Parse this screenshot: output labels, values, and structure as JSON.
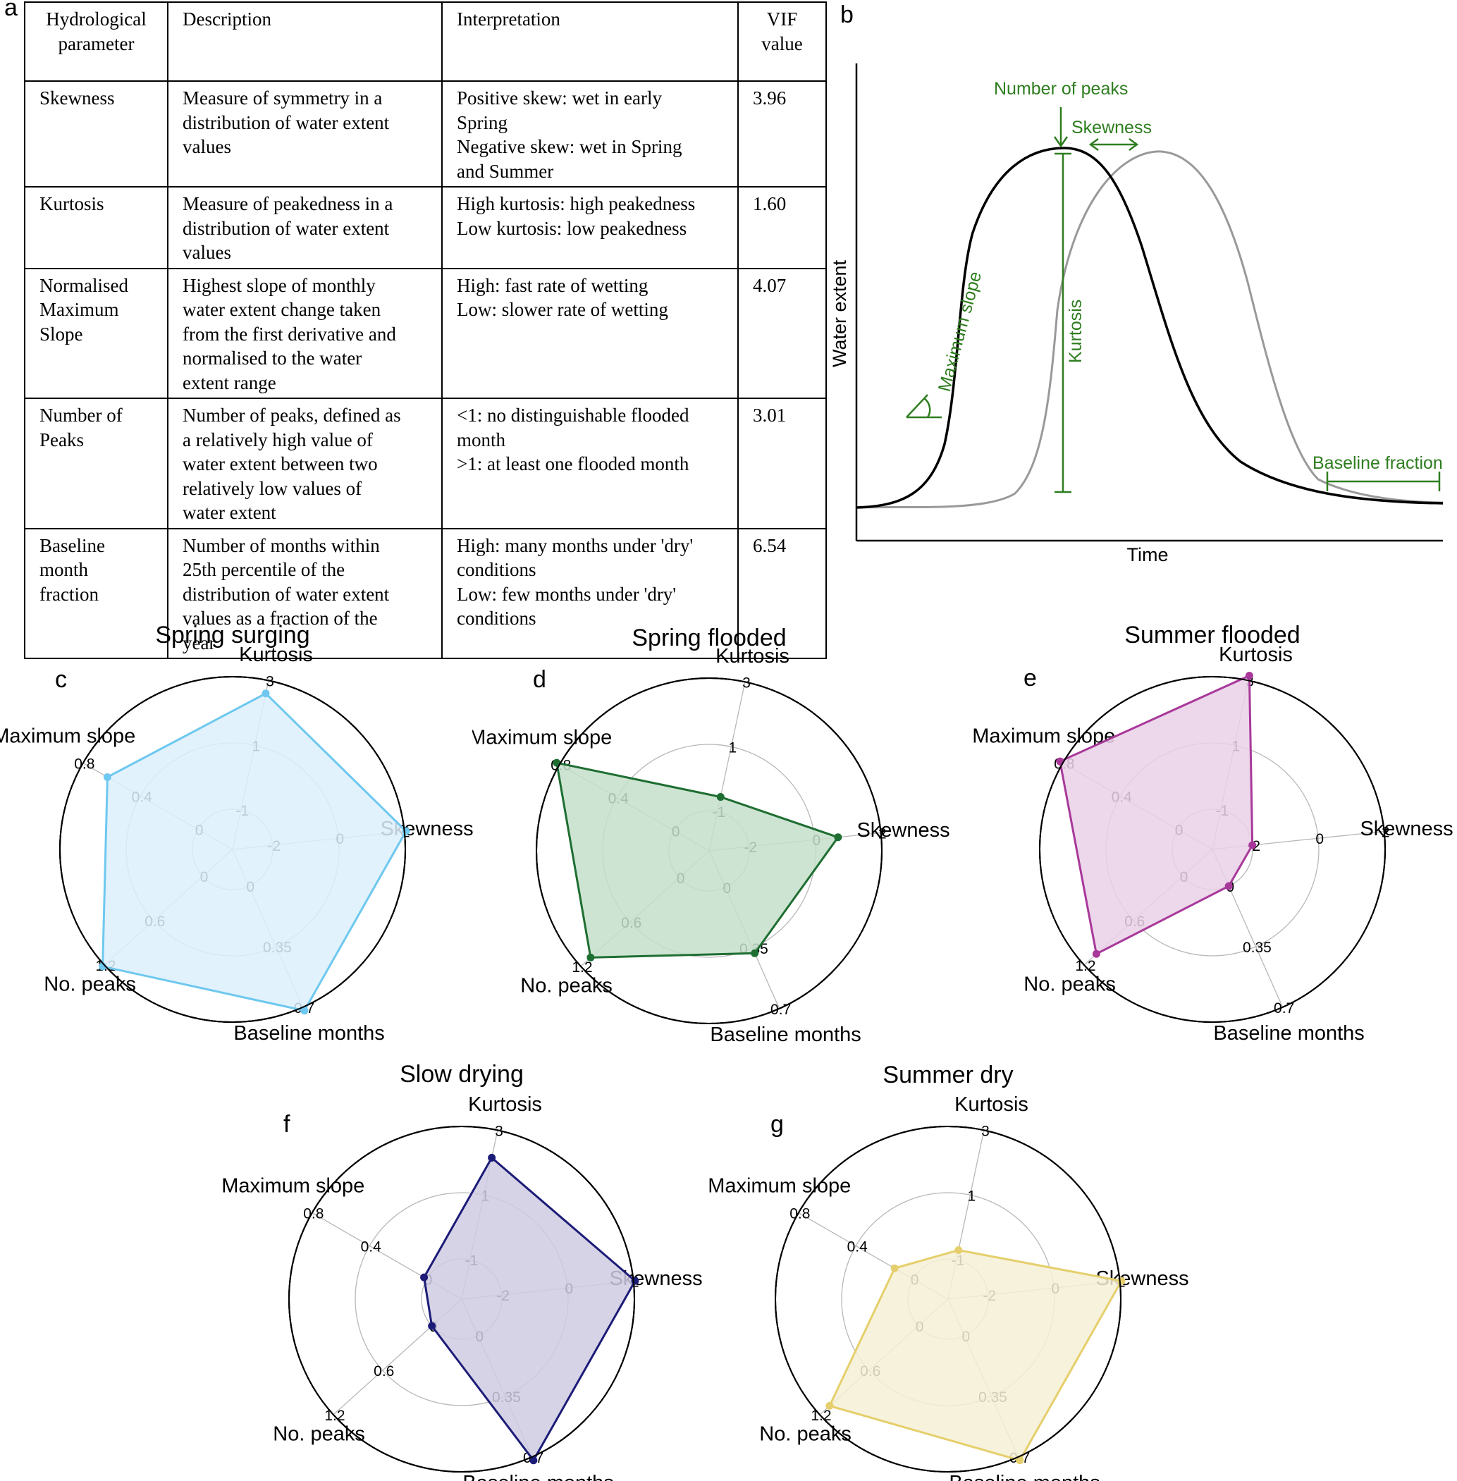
{
  "panel_labels": {
    "a": "a",
    "b": "b",
    "c": "c",
    "d": "d",
    "e": "e",
    "f": "f",
    "g": "g"
  },
  "table": {
    "headers": [
      [
        "Hydrological",
        "parameter"
      ],
      [
        "Description"
      ],
      [
        "Interpretation"
      ],
      [
        "VIF",
        "value"
      ]
    ],
    "rows": [
      {
        "parameter": [
          "Skewness"
        ],
        "description": [
          "Measure of symmetry in a",
          "distribution of water extent",
          "values"
        ],
        "interpretation": [
          "Positive skew: wet in early",
          "Spring",
          "Negative skew: wet in Spring",
          "and Summer"
        ],
        "vif": "3.96"
      },
      {
        "parameter": [
          "Kurtosis"
        ],
        "description": [
          "Measure of peakedness in a",
          "distribution of water extent",
          "values"
        ],
        "interpretation": [
          "High kurtosis: high peakedness",
          "Low kurtosis: low peakedness"
        ],
        "vif": "1.60"
      },
      {
        "parameter": [
          "Normalised",
          "Maximum",
          "Slope"
        ],
        "description": [
          "Highest slope of monthly",
          "water extent change taken",
          "from the first derivative and",
          "normalised to the water",
          "extent range"
        ],
        "interpretation": [
          "High: fast rate of wetting",
          "Low: slower rate of wetting"
        ],
        "vif": "4.07"
      },
      {
        "parameter": [
          "Number of",
          "Peaks"
        ],
        "description": [
          "Number of peaks, defined as",
          "a relatively high value of",
          "water extent between two",
          "relatively low values of",
          "water extent"
        ],
        "interpretation": [
          "<1: no distinguishable flooded",
          "month",
          ">1: at least one flooded month"
        ],
        "vif": "3.01"
      },
      {
        "parameter": [
          "Baseline",
          "month",
          "fraction"
        ],
        "description": [
          "Number of months within",
          "25th percentile of the",
          "distribution of water extent",
          "values as a fraction of the",
          "year"
        ],
        "interpretation": [
          "High: many months under 'dry'",
          "conditions",
          "Low:  few months   under 'dry'",
          "conditions"
        ],
        "vif": "6.54"
      }
    ]
  },
  "schematic": {
    "xlabel": "Time",
    "ylabel": "Water extent",
    "annotations": {
      "peaks": "Number of peaks",
      "skewness": "Skewness",
      "kurtosis": "Kurtosis",
      "slope": "Maximum slope",
      "baseline": "Baseline fraction"
    },
    "colors": {
      "primary": "#000000",
      "shifted": "#999999",
      "annotation": "#2e7d1f"
    }
  },
  "radar_axes": [
    "Kurtosis",
    "Maximum slope",
    "No. peaks",
    "Baseline months",
    "Skewness"
  ],
  "chart_data": [
    {
      "type": "radar",
      "panel": "c",
      "title": "Spring surging",
      "color": "#6ec8ef",
      "fill": "#ddf0fb",
      "axes": [
        {
          "name": "Kurtosis",
          "ticks": [
            "-1",
            "1",
            "3"
          ],
          "range": [
            -1,
            3
          ]
        },
        {
          "name": "Maximum slope",
          "ticks": [
            "0",
            "0.4",
            "0.8"
          ],
          "range": [
            0,
            0.8
          ]
        },
        {
          "name": "No. peaks",
          "ticks": [
            "0",
            "0.6",
            "1.2"
          ],
          "range": [
            0,
            1.2
          ]
        },
        {
          "name": "Baseline months",
          "ticks": [
            "0",
            "0.35",
            "0.7"
          ],
          "range": [
            0,
            0.7
          ]
        },
        {
          "name": "Skewness",
          "ticks": [
            "-2",
            "0",
            "2"
          ],
          "range": [
            -2,
            2
          ]
        }
      ],
      "values": {
        "Kurtosis": 2.6,
        "Maximum slope": 0.63,
        "No. peaks": 1.22,
        "Baseline months": 0.72,
        "Skewness": 2.05
      }
    },
    {
      "type": "radar",
      "panel": "d",
      "title": "Spring flooded",
      "color": "#1e6e32",
      "fill": "#c6dfca",
      "axes": [
        {
          "name": "Kurtosis",
          "ticks": [
            "-1",
            "1",
            "3"
          ],
          "range": [
            -1,
            3
          ]
        },
        {
          "name": "Maximum slope",
          "ticks": [
            "0",
            "0.4",
            "0.8"
          ],
          "range": [
            0,
            0.8
          ]
        },
        {
          "name": "No. peaks",
          "ticks": [
            "0",
            "0.6",
            "1.2"
          ],
          "range": [
            0,
            1.2
          ]
        },
        {
          "name": "Baseline months",
          "ticks": [
            "0",
            "0.35",
            "0.7"
          ],
          "range": [
            0,
            0.7
          ]
        },
        {
          "name": "Skewness",
          "ticks": [
            "-2",
            "0",
            "2"
          ],
          "range": [
            -2,
            2
          ]
        }
      ],
      "values": {
        "Kurtosis": -0.55,
        "Maximum slope": 0.82,
        "No. peaks": 1.08,
        "Baseline months": 0.38,
        "Skewness": 0.7
      }
    },
    {
      "type": "radar",
      "panel": "e",
      "title": "Summer flooded",
      "color": "#a8399a",
      "fill": "#ead0e8",
      "axes": [
        {
          "name": "Kurtosis",
          "ticks": [
            "-1",
            "1",
            "3"
          ],
          "range": [
            -1,
            3
          ]
        },
        {
          "name": "Maximum slope",
          "ticks": [
            "0",
            "0.4",
            "0.8"
          ],
          "range": [
            0,
            0.8
          ]
        },
        {
          "name": "No. peaks",
          "ticks": [
            "0",
            "0.6",
            "1.2"
          ],
          "range": [
            0,
            1.2
          ]
        },
        {
          "name": "Baseline months",
          "ticks": [
            "0",
            "0.35",
            "0.7"
          ],
          "range": [
            0,
            0.7
          ]
        },
        {
          "name": "Skewness",
          "ticks": [
            "-2",
            "0",
            "2"
          ],
          "range": [
            -2,
            2
          ]
        }
      ],
      "values": {
        "Kurtosis": 3.15,
        "Maximum slope": 0.82,
        "No. peaks": 1.05,
        "Baseline months": 0.0,
        "Skewness": -2.0
      }
    },
    {
      "type": "radar",
      "panel": "f",
      "title": "Slow drying",
      "color": "#1c1c78",
      "fill": "#cfcbe3",
      "axes": [
        {
          "name": "Kurtosis",
          "ticks": [
            "-1",
            "1",
            "3"
          ],
          "range": [
            -1,
            3
          ]
        },
        {
          "name": "Maximum slope",
          "ticks": [
            "0",
            "0.4",
            "0.8"
          ],
          "range": [
            0,
            0.8
          ]
        },
        {
          "name": "No. peaks",
          "ticks": [
            "0",
            "0.6",
            "1.2"
          ],
          "range": [
            0,
            1.2
          ]
        },
        {
          "name": "Baseline months",
          "ticks": [
            "0",
            "0.35",
            "0.7"
          ],
          "range": [
            0,
            0.7
          ]
        },
        {
          "name": "Skewness",
          "ticks": [
            "-2",
            "0",
            "2"
          ],
          "range": [
            -2,
            2
          ]
        }
      ],
      "values": {
        "Kurtosis": 2.15,
        "Maximum slope": 0.02,
        "No. peaks": 0.0,
        "Baseline months": 0.72,
        "Skewness": 2.05
      }
    },
    {
      "type": "radar",
      "panel": "g",
      "title": "Summer dry",
      "color": "#e5cf6c",
      "fill": "#f6f0d6",
      "axes": [
        {
          "name": "Kurtosis",
          "ticks": [
            "-1",
            "1",
            "3"
          ],
          "range": [
            -1,
            3
          ]
        },
        {
          "name": "Maximum slope",
          "ticks": [
            "0",
            "0.4",
            "0.8"
          ],
          "range": [
            0,
            0.8
          ]
        },
        {
          "name": "No. peaks",
          "ticks": [
            "0",
            "0.6",
            "1.2"
          ],
          "range": [
            0,
            1.2
          ]
        },
        {
          "name": "Baseline months",
          "ticks": [
            "0",
            "0.35",
            "0.7"
          ],
          "range": [
            0,
            0.7
          ]
        },
        {
          "name": "Skewness",
          "ticks": [
            "-2",
            "0",
            "2"
          ],
          "range": [
            -2,
            2
          ]
        }
      ],
      "values": {
        "Kurtosis": -0.7,
        "Maximum slope": 0.13,
        "No. peaks": 1.08,
        "Baseline months": 0.72,
        "Skewness": 2.05
      }
    }
  ]
}
